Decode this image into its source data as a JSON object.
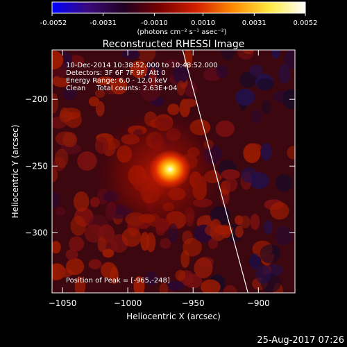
{
  "colorbar": {
    "ticks": [
      "-0.0052",
      "-0.0031",
      "-0.0010",
      "0.0010",
      "0.0031",
      "0.0052"
    ],
    "units_label": "(photons cm⁻² s⁻¹ asec⁻²)",
    "colors": [
      "#0000ff",
      "#3a0a7a",
      "#200020",
      "#7a0000",
      "#d42000",
      "#ff8a00",
      "#ffe840",
      "#ffffff"
    ]
  },
  "plot": {
    "title": "Reconstructed RHESSI Image",
    "annotation_lines": [
      "10-Dec-2014 10:38:52.000 to 10:48:52.000",
      "Detectors: 3F 6F 7F 9F, Att 0",
      "Energy Range: 6.0 - 12.0 keV",
      "Clean     Total counts: 2.63E+04"
    ],
    "peak_label": "Position of Peak = [-965,-248]"
  },
  "footer": {
    "timestamp": "25-Aug-2017 07:26"
  },
  "chart_data": {
    "type": "heatmap",
    "title": "Reconstructed RHESSI Image",
    "xlabel": "Heliocentric X (arcsec)",
    "ylabel": "Heliocentric Y (arcsec)",
    "xlim": [
      -1058,
      -872
    ],
    "ylim": [
      -345,
      -163
    ],
    "xticks": [
      -1050,
      -1000,
      -950,
      -900
    ],
    "xtick_labels": [
      "−1050",
      "−1000",
      "−950",
      "−900"
    ],
    "yticks": [
      -200,
      -250,
      -300
    ],
    "ytick_labels": [
      "−200",
      "−250",
      "−300"
    ],
    "colorbar_range": [
      -0.0052,
      0.0052
    ],
    "peak_position": [
      -965,
      -248
    ],
    "limb_line": {
      "x": [
        -958,
        -908
      ],
      "y": [
        -163,
        -345
      ]
    }
  }
}
